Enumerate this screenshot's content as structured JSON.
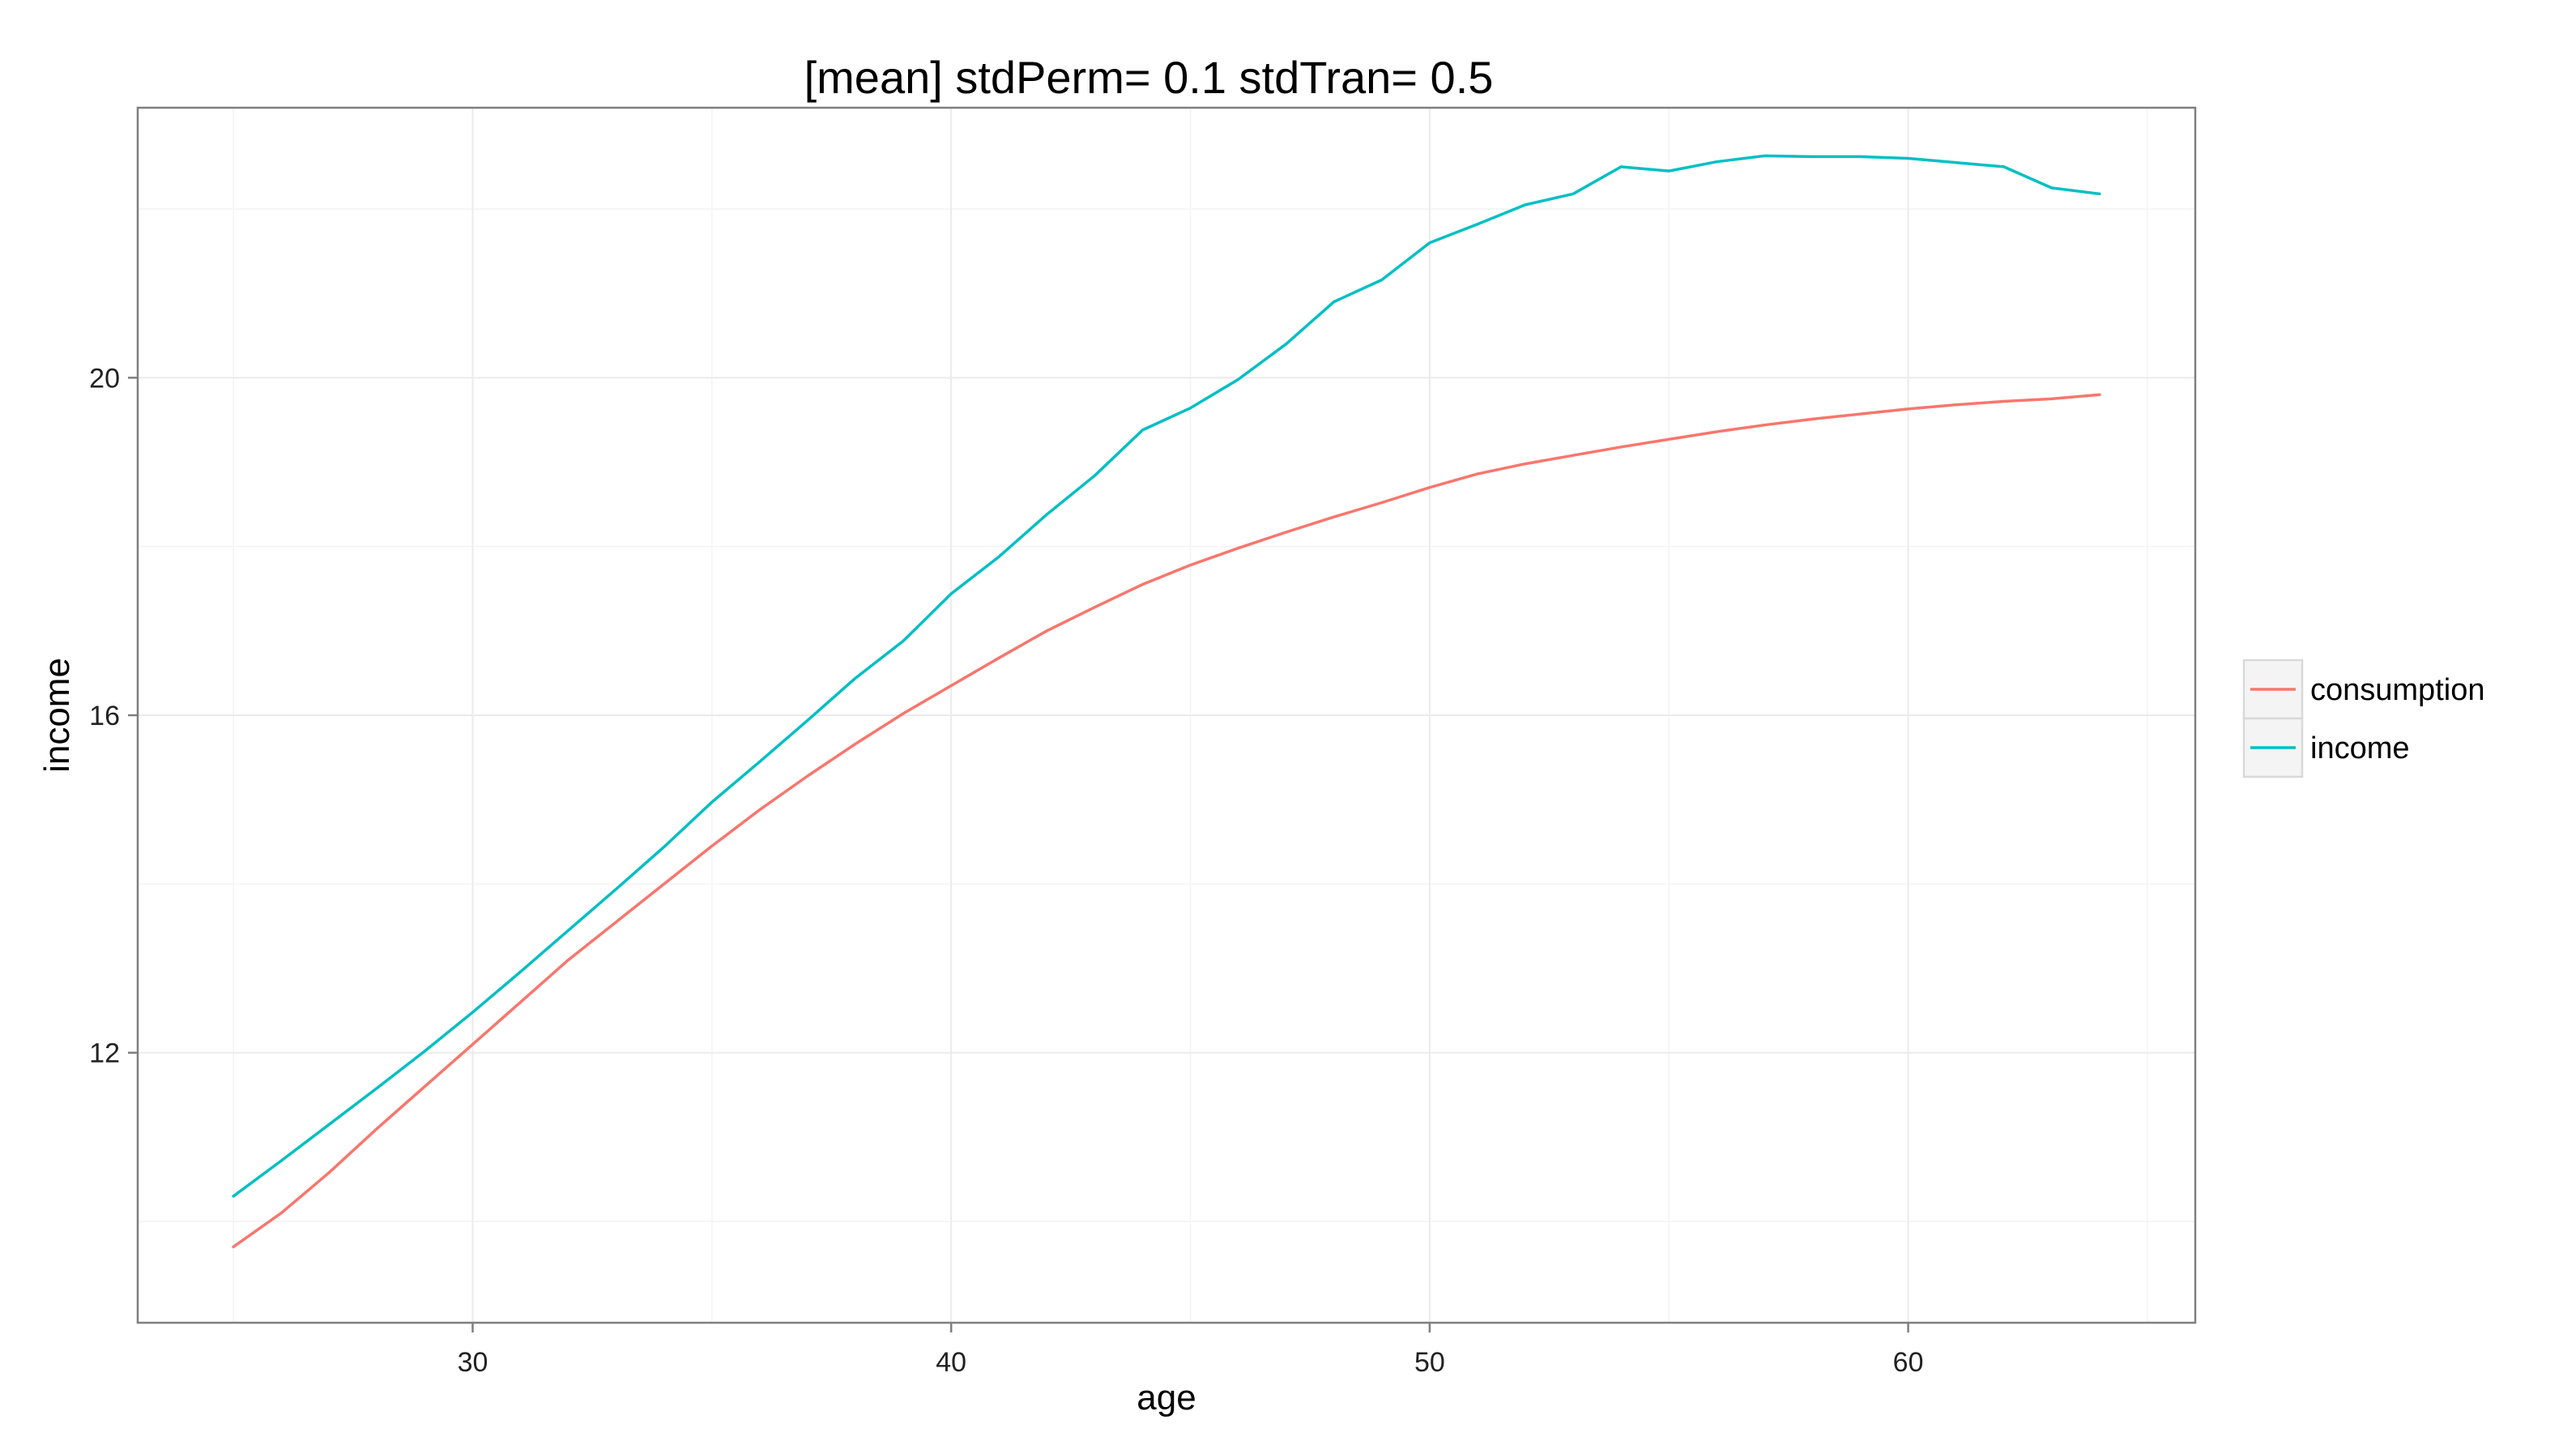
{
  "chart_data": {
    "type": "line",
    "title": "[mean] stdPerm= 0.1 stdTran= 0.5",
    "xlabel": "age",
    "ylabel": "income",
    "xlim": [
      23,
      66
    ],
    "ylim": [
      8.8,
      23.2
    ],
    "x_ticks": [
      30,
      40,
      50,
      60
    ],
    "x_tick_labels": [
      "30",
      "40",
      "50",
      "60"
    ],
    "y_ticks": [
      12,
      16,
      20
    ],
    "y_tick_labels": [
      "12",
      "16",
      "20"
    ],
    "grid": true,
    "legend_position": "right",
    "x": [
      25,
      26,
      27,
      28,
      29,
      30,
      31,
      32,
      33,
      34,
      35,
      36,
      37,
      38,
      39,
      40,
      41,
      42,
      43,
      44,
      45,
      46,
      47,
      48,
      49,
      50,
      51,
      52,
      53,
      54,
      55,
      56,
      57,
      58,
      59,
      60,
      61,
      62,
      63,
      64
    ],
    "series": [
      {
        "name": "consumption",
        "color": "#F8766D",
        "values": [
          9.7,
          10.1,
          10.58,
          11.1,
          11.6,
          12.1,
          12.6,
          13.1,
          13.55,
          14.0,
          14.45,
          14.88,
          15.28,
          15.66,
          16.02,
          16.35,
          16.68,
          17.0,
          17.28,
          17.55,
          17.78,
          17.98,
          18.17,
          18.35,
          18.52,
          18.7,
          18.86,
          18.98,
          19.08,
          19.18,
          19.27,
          19.36,
          19.44,
          19.51,
          19.57,
          19.63,
          19.68,
          19.72,
          19.75,
          19.8
        ]
      },
      {
        "name": "income",
        "color": "#00BFC4",
        "values": [
          10.3,
          10.72,
          11.15,
          11.58,
          12.02,
          12.48,
          12.96,
          13.45,
          13.94,
          14.44,
          14.97,
          15.45,
          15.94,
          16.44,
          16.88,
          17.44,
          17.88,
          18.38,
          18.84,
          19.38,
          19.64,
          19.98,
          20.4,
          20.9,
          21.16,
          21.6,
          21.82,
          22.05,
          22.18,
          22.5,
          22.45,
          22.56,
          22.63,
          22.62,
          22.62,
          22.6,
          22.55,
          22.5,
          22.25,
          22.18
        ]
      }
    ]
  }
}
